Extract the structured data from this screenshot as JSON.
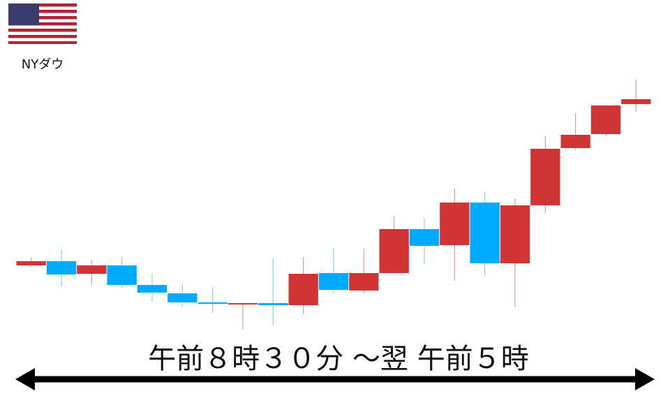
{
  "chart_data": {
    "type": "candlestick",
    "label": "NYダウ",
    "time_range": "午前８時３０分 ～翌 午前５時",
    "open": [
      187,
      193,
      175,
      187,
      159,
      147,
      134,
      132,
      133,
      130,
      176,
      151,
      176,
      239,
      216,
      277,
      190,
      273,
      355,
      375,
      418
    ],
    "high": [
      199,
      210,
      195,
      199,
      175,
      161,
      157,
      133,
      197,
      199,
      212,
      211,
      257,
      255,
      297,
      292,
      283,
      372,
      405,
      416,
      453
    ],
    "low": [
      185,
      157,
      159,
      155,
      135,
      127,
      119,
      95,
      102,
      117,
      147,
      147,
      176,
      189,
      165,
      172,
      127,
      262,
      352,
      372,
      407
    ],
    "close": [
      193,
      174,
      187,
      159,
      148,
      134,
      132,
      133,
      130,
      175,
      152,
      176,
      239,
      215,
      277,
      190,
      273,
      354,
      374,
      416,
      425
    ],
    "up_color": "#d03434",
    "down_color": "#00aaff",
    "ylim": [
      0,
      567
    ]
  }
}
